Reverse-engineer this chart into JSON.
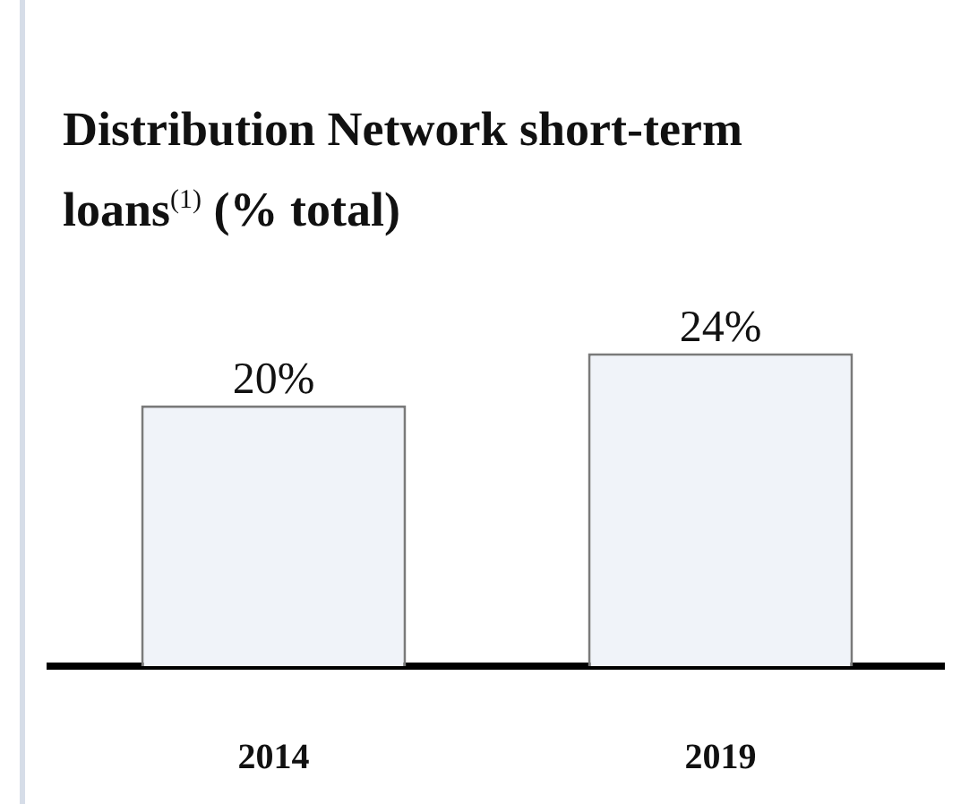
{
  "chart_data": {
    "type": "bar",
    "title": "Distribution Network short-term loans$^{(1)}$ (% total)",
    "categories": [
      "2014",
      "2019"
    ],
    "values": [
      20,
      24
    ],
    "color": "#f0f3f9",
    "value_labels": [
      "20%",
      "24%"
    ],
    "tick_labels": "x",
    "legend": false
  }
}
